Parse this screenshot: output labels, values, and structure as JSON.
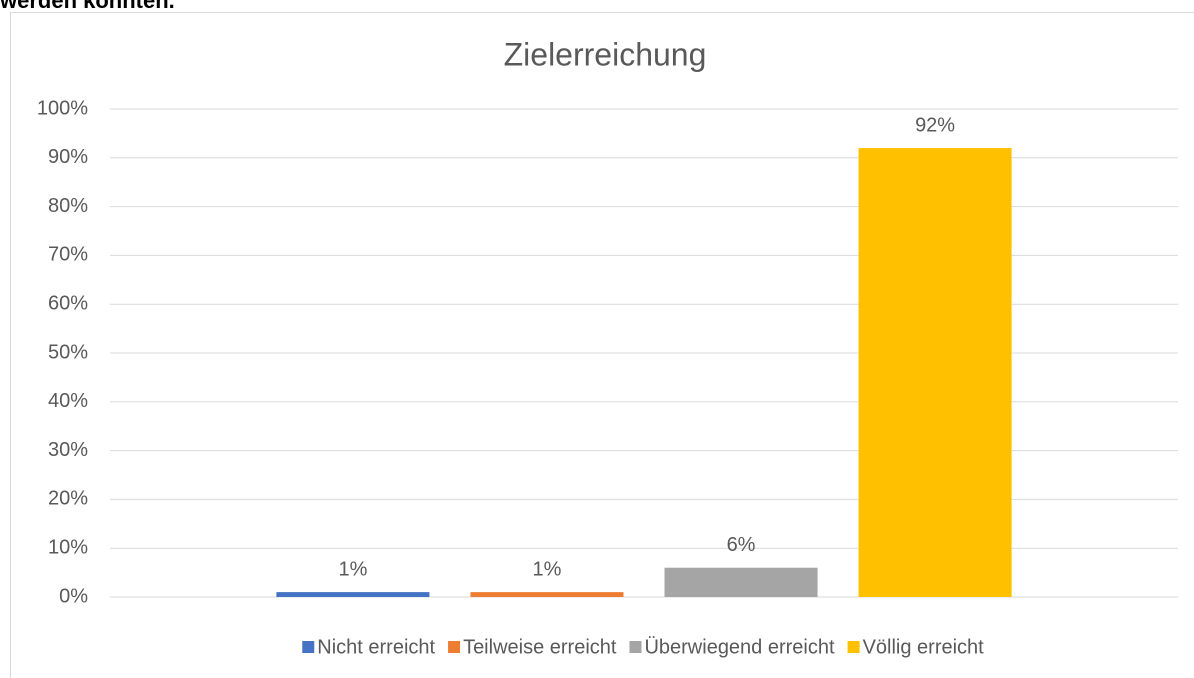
{
  "header_text": "werden konnten.",
  "chart_data": {
    "type": "bar",
    "title": "Zielerreichung",
    "categories": [
      null
    ],
    "series": [
      {
        "name": "Nicht erreicht",
        "color": "#4472c4",
        "values": [
          1
        ],
        "value_labels": [
          "1%"
        ]
      },
      {
        "name": "Teilweise erreicht",
        "color": "#ed7d31",
        "values": [
          1
        ],
        "value_labels": [
          "1%"
        ]
      },
      {
        "name": "Überwiegend erreicht",
        "color": "#a5a5a5",
        "values": [
          6
        ],
        "value_labels": [
          "6%"
        ]
      },
      {
        "name": "Völlig erreicht",
        "color": "#ffc000",
        "values": [
          92
        ],
        "value_labels": [
          "92%"
        ]
      }
    ],
    "ylim": [
      0,
      100
    ],
    "yticks": [
      {
        "value": 0,
        "label": "0%"
      },
      {
        "value": 10,
        "label": "10%"
      },
      {
        "value": 20,
        "label": "20%"
      },
      {
        "value": 30,
        "label": "30%"
      },
      {
        "value": 40,
        "label": "40%"
      },
      {
        "value": 50,
        "label": "50%"
      },
      {
        "value": 60,
        "label": "60%"
      },
      {
        "value": 70,
        "label": "70%"
      },
      {
        "value": 80,
        "label": "80%"
      },
      {
        "value": 90,
        "label": "90%"
      },
      {
        "value": 100,
        "label": "100%"
      }
    ],
    "grid": true,
    "legend": "bottom"
  }
}
